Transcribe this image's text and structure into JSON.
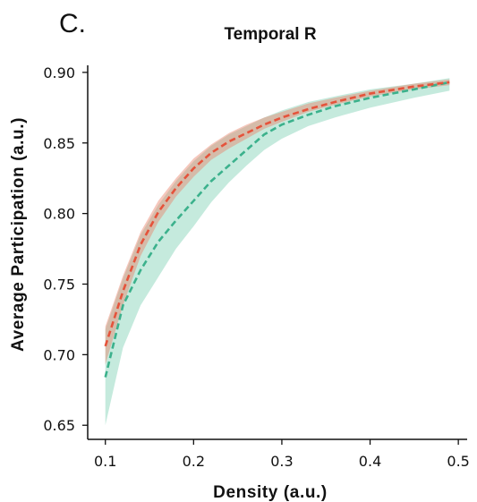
{
  "panel_label": "C.",
  "chart_data": {
    "type": "line",
    "title": "Temporal R",
    "xlabel": "Density (a.u.)",
    "ylabel": "Average Participation (a.u.)",
    "xlim": [
      0.08,
      0.51
    ],
    "ylim": [
      0.64,
      0.905
    ],
    "xticks": [
      {
        "value": 0.1,
        "label": "0.1"
      },
      {
        "value": 0.2,
        "label": "0.2"
      },
      {
        "value": 0.3,
        "label": "0.3"
      },
      {
        "value": 0.4,
        "label": "0.4"
      },
      {
        "value": 0.5,
        "label": "0.5"
      }
    ],
    "yticks": [
      {
        "value": 0.65,
        "label": "0.65"
      },
      {
        "value": 0.7,
        "label": "0.70"
      },
      {
        "value": 0.75,
        "label": "0.75"
      },
      {
        "value": 0.8,
        "label": "0.80"
      },
      {
        "value": 0.85,
        "label": "0.85"
      },
      {
        "value": 0.9,
        "label": "0.90"
      }
    ],
    "grid": false,
    "x": [
      0.1,
      0.12,
      0.14,
      0.16,
      0.18,
      0.2,
      0.22,
      0.24,
      0.26,
      0.28,
      0.3,
      0.33,
      0.36,
      0.4,
      0.45,
      0.49
    ],
    "series": [
      {
        "color": "#e5533b",
        "band_color": "#e8826a",
        "band_opacity": 0.45,
        "line_style": "dashed",
        "values": [
          0.706,
          0.745,
          0.778,
          0.801,
          0.818,
          0.832,
          0.843,
          0.851,
          0.857,
          0.863,
          0.868,
          0.874,
          0.879,
          0.885,
          0.89,
          0.893
        ],
        "lower": [
          0.693,
          0.735,
          0.77,
          0.794,
          0.812,
          0.826,
          0.838,
          0.846,
          0.853,
          0.86,
          0.865,
          0.872,
          0.877,
          0.883,
          0.888,
          0.891
        ],
        "upper": [
          0.72,
          0.756,
          0.787,
          0.809,
          0.825,
          0.839,
          0.849,
          0.857,
          0.863,
          0.868,
          0.872,
          0.878,
          0.882,
          0.887,
          0.892,
          0.895
        ]
      },
      {
        "color": "#3bb18c",
        "band_color": "#7fd0b4",
        "band_opacity": 0.45,
        "line_style": "dashed",
        "values": [
          0.684,
          0.735,
          0.76,
          0.78,
          0.795,
          0.809,
          0.823,
          0.834,
          0.845,
          0.856,
          0.863,
          0.87,
          0.876,
          0.882,
          0.888,
          0.893
        ],
        "lower": [
          0.65,
          0.705,
          0.735,
          0.755,
          0.775,
          0.791,
          0.808,
          0.822,
          0.834,
          0.845,
          0.853,
          0.862,
          0.868,
          0.875,
          0.882,
          0.887
        ],
        "upper": [
          0.718,
          0.754,
          0.785,
          0.806,
          0.823,
          0.837,
          0.848,
          0.856,
          0.862,
          0.868,
          0.873,
          0.879,
          0.883,
          0.888,
          0.892,
          0.896
        ]
      }
    ]
  }
}
